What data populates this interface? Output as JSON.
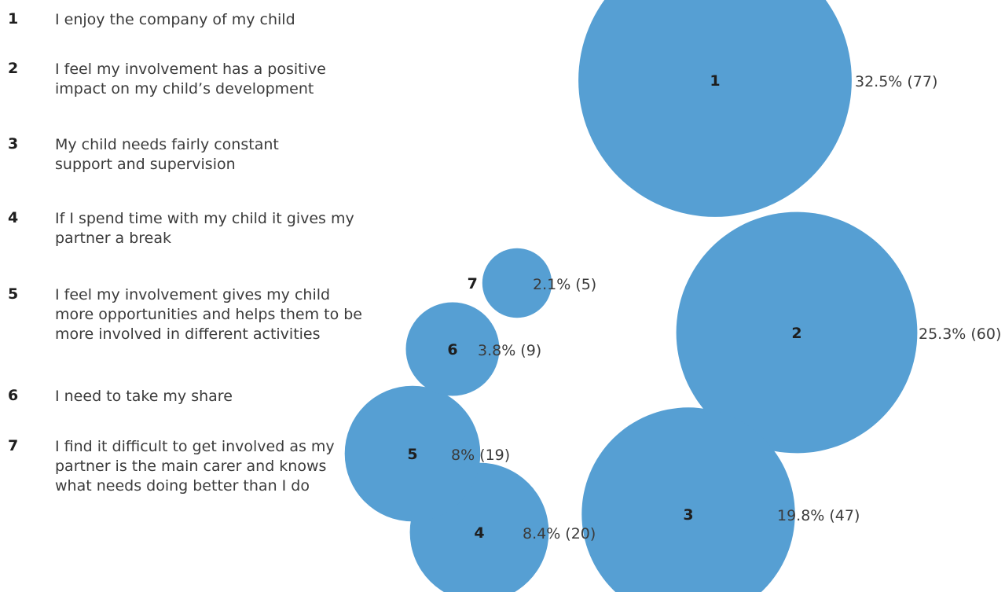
{
  "chart_data": {
    "type": "bubble",
    "color": "#569fd3",
    "items": [
      {
        "id": "1",
        "text": "I enjoy the company of my child",
        "percent": 32.5,
        "count": 77,
        "label": "32.5% (77)"
      },
      {
        "id": "2",
        "text": "I feel my involvement has a positive impact on my child’s development",
        "percent": 25.3,
        "count": 60,
        "label": "25.3% (60)"
      },
      {
        "id": "3",
        "text": "My child needs fairly constant support and supervision",
        "percent": 19.8,
        "count": 47,
        "label": "19.8% (47)"
      },
      {
        "id": "4",
        "text": "If I spend time with my child it gives my partner a break",
        "percent": 8.4,
        "count": 20,
        "label": "8.4% (20)"
      },
      {
        "id": "5",
        "text": "I feel my involvement gives my child more opportunities and helps them to be more involved in different activities",
        "percent": 8,
        "count": 19,
        "label": "8% (19)"
      },
      {
        "id": "6",
        "text": "I need to take my share",
        "percent": 3.8,
        "count": 9,
        "label": "3.8% (9)"
      },
      {
        "id": "7",
        "text": "I find it difficult to get involved as my partner is the main carer  and knows what needs doing better than I do",
        "percent": 2.1,
        "count": 5,
        "label": "2.1% (5)"
      }
    ]
  }
}
